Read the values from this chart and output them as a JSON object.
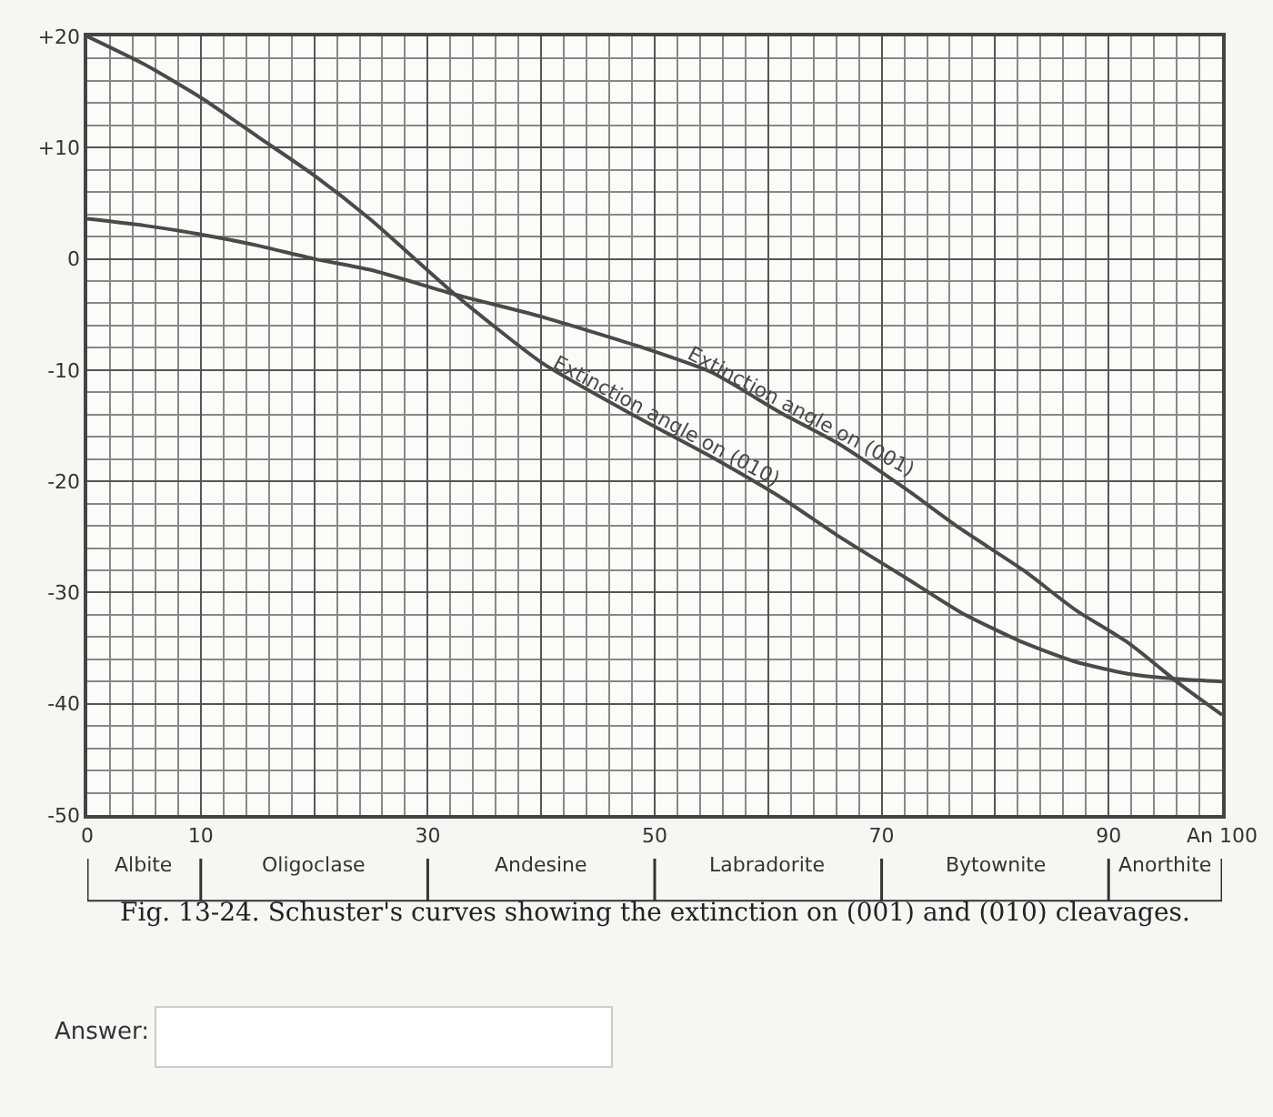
{
  "chart_data": {
    "type": "line",
    "x": [
      0,
      5,
      10,
      15,
      20,
      25,
      32.4,
      40,
      48.4,
      55,
      61.2,
      66,
      72,
      77,
      82.5,
      87,
      91.7,
      96.5,
      100
    ],
    "series": [
      {
        "name": "Extinction angle on (001)",
        "color": "#4a4a4a",
        "values": [
          3.6,
          3,
          2.2,
          1.2,
          0,
          -1,
          -3.2,
          -5.2,
          -7.8,
          -10.2,
          -13.9,
          -16.5,
          -20.6,
          -24.3,
          -28,
          -31.5,
          -34.5,
          -38.4,
          -41
        ]
      },
      {
        "name": "Extinction angle on (010)",
        "color": "#4a4a4a",
        "values": [
          20,
          17.5,
          14.5,
          11,
          7.5,
          3.5,
          -3.2,
          -9.3,
          -14.2,
          -17.8,
          -21.5,
          -24.8,
          -28.6,
          -31.8,
          -34.5,
          -36.2,
          -37.3,
          -37.8,
          -38
        ]
      }
    ],
    "xlim": [
      0,
      100
    ],
    "ylim": [
      -50,
      20
    ],
    "xticks": [
      0,
      10,
      {
        "value": 20,
        "label": null
      },
      30,
      {
        "value": 40,
        "label": null
      },
      50,
      {
        "value": 60,
        "label": null
      },
      70,
      {
        "value": 80,
        "label": null
      },
      90,
      {
        "value": 100,
        "label": "An 100"
      }
    ],
    "yticks": [
      {
        "value": 20,
        "label": "+20"
      },
      {
        "value": 10,
        "label": "+10"
      },
      0,
      -10,
      -20,
      -30,
      -40,
      -50
    ],
    "grid": true,
    "legend": false,
    "marker": "none",
    "line_style": "solid",
    "annotations": [
      "Albite",
      "Oligoclase",
      "Andesine",
      "Labradorite",
      "Bytownite",
      "Anorthite",
      "Fig. 13-24. Schuster's curves showing the extinction on (001) and (010) cleavages.",
      "Answer:"
    ]
  }
}
